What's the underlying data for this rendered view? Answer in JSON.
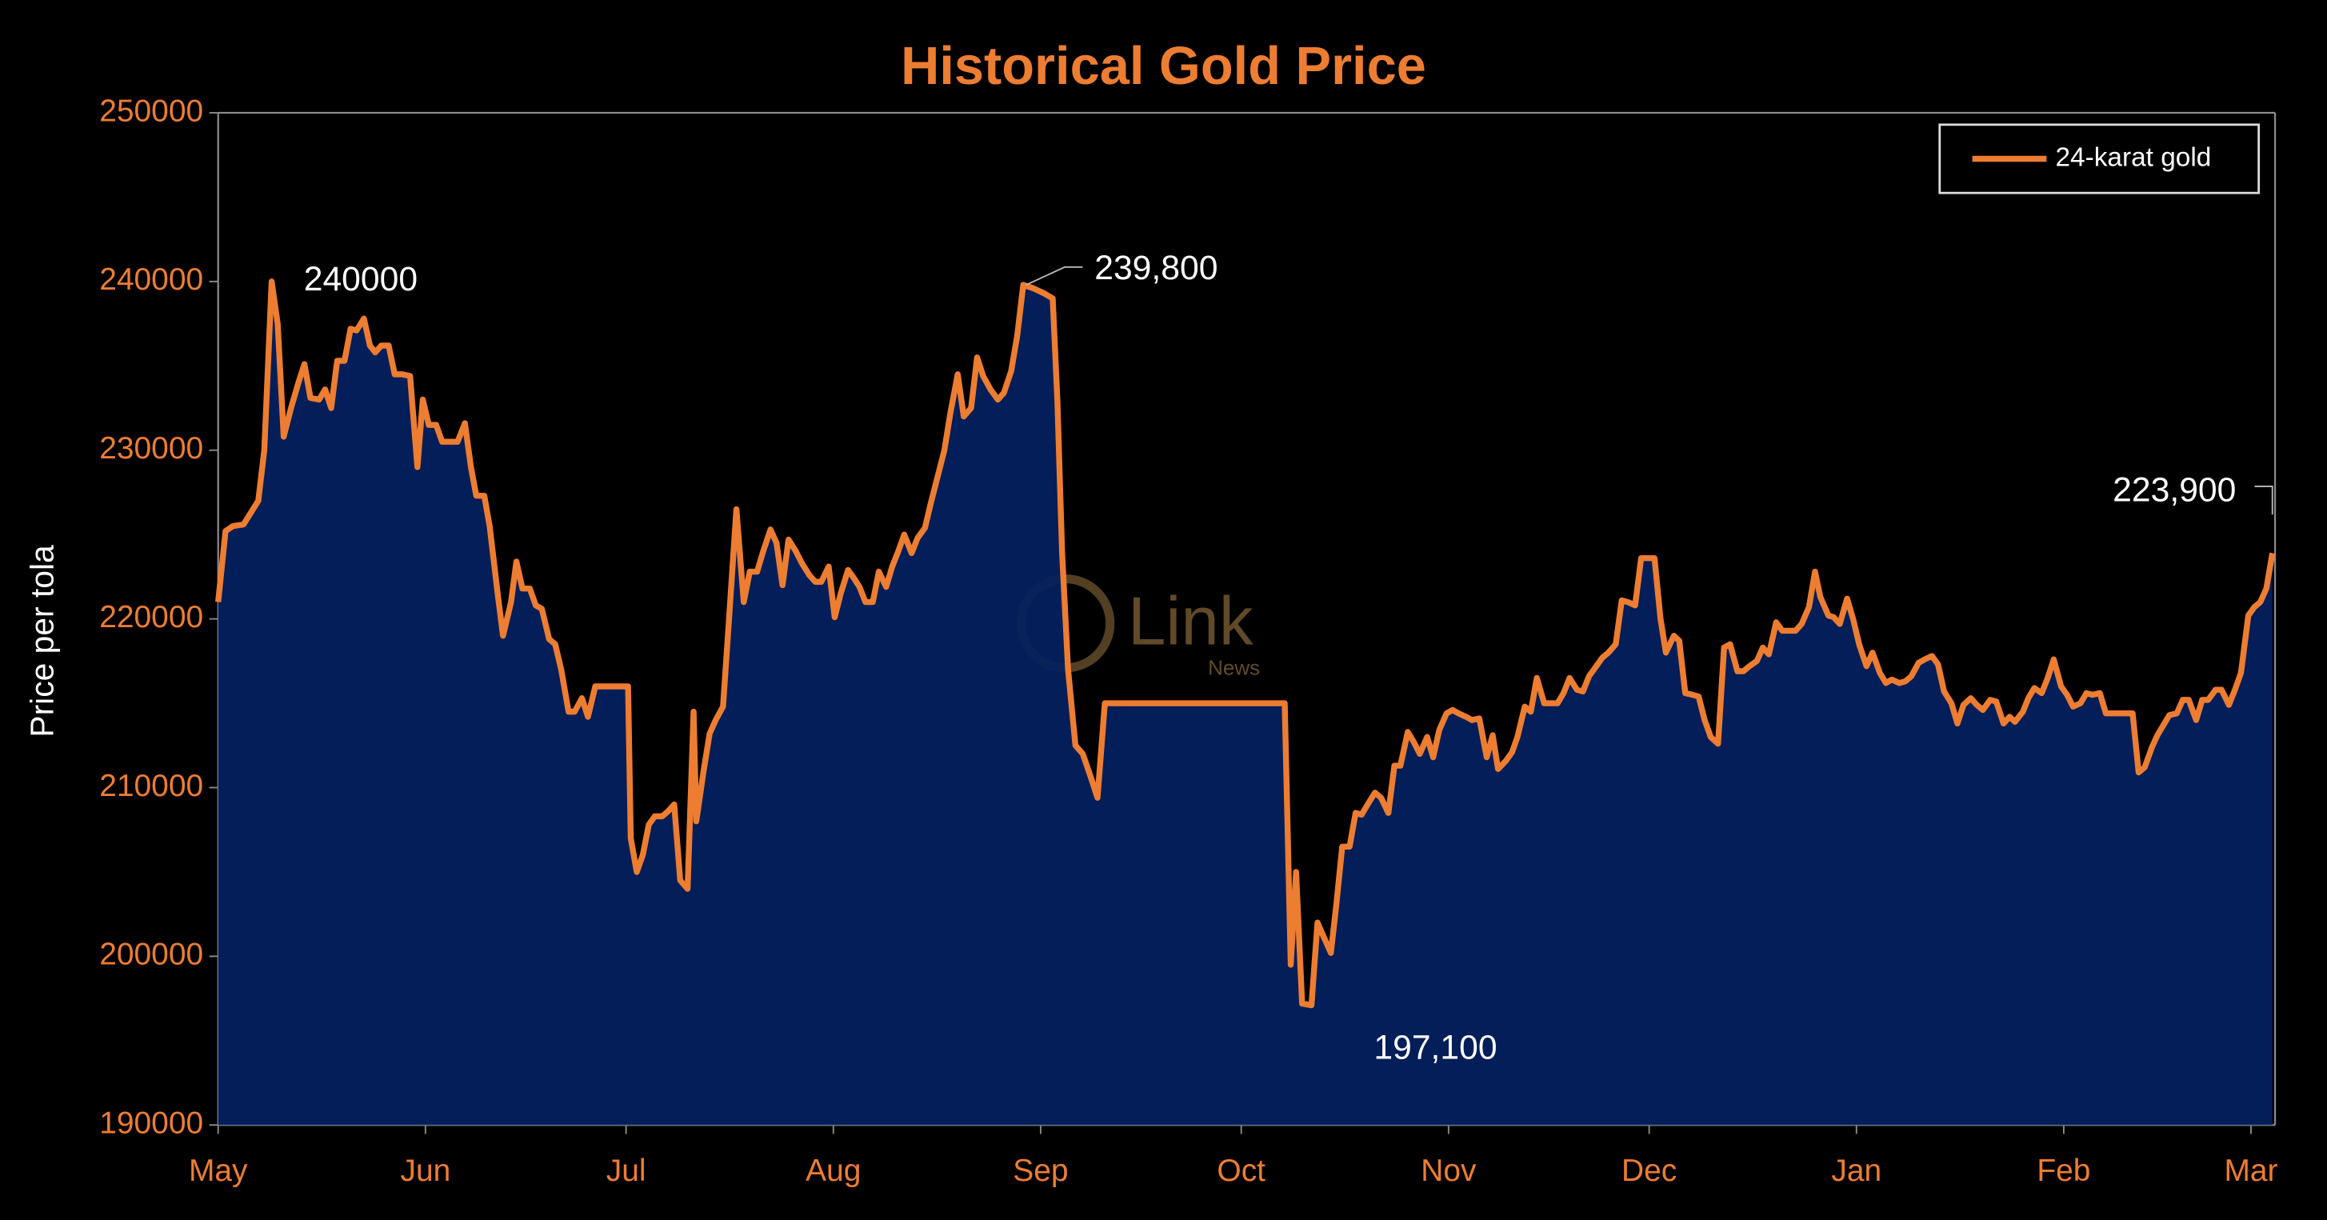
{
  "chart_data": {
    "type": "line",
    "title": "Historical Gold Price",
    "ylabel": "Price per tola",
    "xlim": [
      0,
      307.6
    ],
    "ylim": [
      190000,
      250000
    ],
    "yticks": [
      190000,
      200000,
      210000,
      220000,
      230000,
      240000,
      250000
    ],
    "xticks": [
      {
        "value": 0,
        "label": "May"
      },
      {
        "value": 31,
        "label": "Jun"
      },
      {
        "value": 61,
        "label": "Jul"
      },
      {
        "value": 92,
        "label": "Aug"
      },
      {
        "value": 123,
        "label": "Sep"
      },
      {
        "value": 153,
        "label": "Oct"
      },
      {
        "value": 184,
        "label": "Nov"
      },
      {
        "value": 214,
        "label": "Dec"
      },
      {
        "value": 245,
        "label": "Jan"
      },
      {
        "value": 276,
        "label": "Feb"
      },
      {
        "value": 304,
        "label": "Mar"
      }
    ],
    "grid": false,
    "legend": "upper right",
    "area_color": "#03215f",
    "watermark": {
      "main": "Link",
      "sub": "News"
    },
    "annotations": [
      {
        "text": "240000",
        "x": 8.0,
        "value": 240000
      },
      {
        "text": "239,800",
        "x": 120.4,
        "value": 239800
      },
      {
        "text": "197,100",
        "x": 163.5,
        "value": 197100
      },
      {
        "text": "223,900",
        "x": 307.2,
        "value": 223900
      }
    ],
    "series": [
      {
        "name": "24-karat gold",
        "color": "#ed7d31",
        "x": [
          0,
          1.1,
          2.2,
          3.8,
          6.0,
          6.9,
          8.0,
          8.9,
          9.8,
          10.9,
          12.0,
          12.9,
          13.8,
          15.1,
          16.0,
          16.9,
          17.8,
          18.9,
          19.8,
          20.7,
          21.8,
          22.7,
          23.5,
          24.4,
          25.5,
          26.4,
          27.5,
          28.7,
          29.8,
          30.6,
          31.5,
          32.6,
          33.5,
          34.6,
          35.8,
          36.9,
          37.8,
          38.6,
          39.8,
          40.6,
          41.8,
          42.6,
          43.8,
          44.6,
          45.5,
          46.6,
          47.5,
          48.4,
          49.5,
          50.4,
          51.3,
          52.4,
          53.3,
          54.4,
          55.3,
          56.4,
          57.3,
          58.6,
          60.0,
          61.3,
          61.7,
          62.6,
          63.5,
          64.4,
          65.3,
          66.4,
          67.3,
          68.2,
          69.1,
          70.2,
          71.1,
          71.5,
          72.6,
          73.5,
          74.4,
          75.5,
          76.4,
          77.5,
          78.6,
          79.5,
          80.6,
          81.5,
          82.6,
          83.5,
          84.4,
          85.3,
          86.4,
          87.3,
          88.4,
          89.3,
          90.2,
          91.3,
          92.2,
          93.1,
          94.2,
          95.1,
          95.9,
          96.8,
          97.9,
          98.8,
          99.9,
          100.8,
          101.7,
          102.6,
          103.7,
          104.6,
          105.7,
          106.6,
          107.7,
          108.6,
          109.5,
          110.6,
          111.5,
          112.6,
          113.5,
          114.4,
          115.5,
          116.6,
          117.5,
          118.6,
          119.5,
          120.4,
          121.9,
          123.5,
          124.8,
          125.5,
          126.2,
          127.1,
          128.2,
          129.3,
          130.6,
          131.5,
          132.6,
          135.9,
          144.8,
          159.5,
          160.4,
          161.2,
          162.1,
          163.5,
          164.4,
          165.5,
          166.4,
          167.2,
          168.1,
          169.2,
          170.1,
          171.0,
          171.9,
          173.0,
          173.9,
          175.0,
          175.9,
          176.8,
          177.9,
          178.8,
          179.7,
          180.8,
          181.7,
          182.6,
          183.7,
          184.6,
          185.5,
          186.6,
          187.5,
          188.6,
          189.7,
          190.6,
          191.4,
          192.6,
          193.5,
          194.3,
          195.4,
          196.3,
          197.2,
          198.3,
          199.2,
          200.3,
          201.2,
          202.1,
          203.2,
          204.1,
          205.0,
          206.1,
          207.0,
          207.9,
          209.0,
          209.9,
          210.8,
          211.9,
          212.8,
          213.9,
          214.8,
          215.7,
          216.5,
          217.7,
          218.5,
          219.4,
          220.5,
          221.4,
          222.3,
          223.2,
          224.3,
          225.2,
          226.1,
          227.2,
          228.1,
          229.0,
          230.1,
          231.0,
          231.9,
          233.0,
          233.9,
          234.8,
          235.9,
          236.8,
          237.9,
          238.8,
          239.6,
          240.8,
          241.6,
          242.5,
          243.6,
          244.5,
          245.4,
          246.5,
          247.4,
          248.5,
          249.4,
          250.3,
          251.4,
          252.3,
          253.2,
          254.3,
          255.2,
          256.3,
          257.2,
          258.1,
          259.2,
          260.1,
          261.0,
          262.1,
          263.0,
          263.9,
          265.0,
          265.9,
          267.0,
          267.9,
          268.7,
          269.9,
          270.7,
          271.6,
          272.7,
          273.6,
          274.5,
          275.6,
          276.5,
          277.4,
          278.5,
          279.4,
          280.3,
          281.4,
          282.3,
          283.2,
          284.3,
          285.2,
          286.3,
          287.2,
          288.1,
          289.2,
          290.0,
          290.9,
          291.8,
          292.9,
          293.8,
          294.7,
          295.8,
          296.7,
          297.6,
          298.7,
          299.6,
          300.7,
          301.6,
          302.5,
          303.6,
          304.5,
          305.4,
          306.3,
          307.2
        ],
        "values": [
          221000,
          225200,
          225500,
          225600,
          227000,
          230000,
          240000,
          237500,
          230800,
          232500,
          234000,
          235100,
          233100,
          233000,
          233600,
          232500,
          235300,
          235300,
          237200,
          237100,
          237800,
          236200,
          235800,
          236200,
          236200,
          234500,
          234500,
          234400,
          229000,
          233000,
          231500,
          231500,
          230500,
          230500,
          230500,
          231600,
          229000,
          227300,
          227300,
          225500,
          221500,
          219000,
          221000,
          223400,
          221800,
          221800,
          220800,
          220600,
          218800,
          218500,
          217000,
          214500,
          214500,
          215300,
          214200,
          216000,
          216000,
          216000,
          216000,
          216000,
          207000,
          205000,
          206000,
          207800,
          208300,
          208300,
          208600,
          209000,
          204500,
          204000,
          214500,
          208000,
          211000,
          213200,
          214000,
          214800,
          220000,
          226500,
          221000,
          222800,
          222800,
          224000,
          225300,
          224500,
          222000,
          224700,
          224000,
          223300,
          222600,
          222200,
          222200,
          223100,
          220100,
          221500,
          222900,
          222400,
          221900,
          221000,
          221000,
          222800,
          221900,
          223100,
          224000,
          225000,
          223900,
          224800,
          225400,
          226900,
          228600,
          230000,
          232200,
          234500,
          232000,
          232500,
          235500,
          234400,
          233600,
          233000,
          233400,
          234700,
          236800,
          239800,
          239600,
          239300,
          239000,
          233000,
          224000,
          217000,
          212500,
          212000,
          210500,
          209400,
          215000,
          215000,
          215000,
          215000,
          199500,
          205000,
          197200,
          197100,
          202000,
          201000,
          200200,
          203000,
          206500,
          206500,
          208500,
          208400,
          209000,
          209700,
          209400,
          208500,
          211300,
          211300,
          213300,
          212700,
          212000,
          213000,
          211800,
          213400,
          214400,
          214600,
          214400,
          214200,
          214000,
          214100,
          211800,
          213100,
          211100,
          211600,
          212100,
          213000,
          214800,
          214500,
          216500,
          215000,
          215000,
          215000,
          215600,
          216500,
          215800,
          215700,
          216600,
          217200,
          217700,
          218000,
          218500,
          221100,
          221000,
          220800,
          223600,
          223600,
          223600,
          220000,
          218000,
          219000,
          218700,
          215600,
          215500,
          215400,
          214000,
          213000,
          212600,
          218300,
          218500,
          216900,
          216900,
          217200,
          217500,
          218300,
          217900,
          219800,
          219300,
          219300,
          219300,
          219700,
          220700,
          222800,
          221300,
          220200,
          220100,
          219700,
          221200,
          220000,
          218500,
          217200,
          218000,
          216800,
          216200,
          216400,
          216200,
          216300,
          216600,
          217400,
          217600,
          217800,
          217300,
          215700,
          215000,
          213800,
          214900,
          215300,
          214900,
          214600,
          215200,
          215100,
          213800,
          214200,
          213900,
          214500,
          215300,
          215900,
          215600,
          216500,
          217600,
          216000,
          215500,
          214800,
          215000,
          215600,
          215500,
          215600,
          214400,
          214400,
          214400,
          214400,
          214400,
          210900,
          211200,
          212400,
          213100,
          213700,
          214300,
          214400,
          215200,
          215200,
          214000,
          215200,
          215200,
          215800,
          215800,
          214900,
          215800,
          216800,
          220200,
          220700,
          221000,
          221800,
          223900
        ]
      }
    ]
  }
}
